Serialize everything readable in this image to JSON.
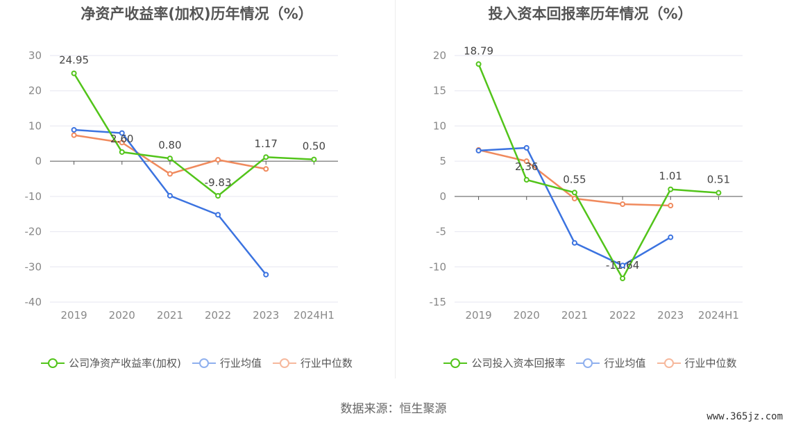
{
  "colors": {
    "company": "#52c41a",
    "industry_avg": "#3b73e0",
    "industry_median": "#f08a5d",
    "grid": "#e6e6f0",
    "axis": "#666666",
    "text": "#666666"
  },
  "chart_data": [
    {
      "type": "line",
      "title": "净资产收益率(加权)历年情况（%）",
      "categories": [
        "2019",
        "2020",
        "2021",
        "2022",
        "2023",
        "2024H1"
      ],
      "ylim": [
        -40,
        30
      ],
      "yticks": [
        30,
        20,
        10,
        0,
        -10,
        -20,
        -30,
        -40
      ],
      "series": [
        {
          "name": "公司净资产收益率(加权)",
          "color_key": "company",
          "values": [
            24.95,
            2.6,
            0.8,
            -9.83,
            1.17,
            0.5
          ],
          "labels": [
            "24.95",
            "2.60",
            "0.80",
            "-9.83",
            "1.17",
            "0.50"
          ]
        },
        {
          "name": "行业均值",
          "color_key": "industry_avg",
          "values": [
            8.9,
            8.0,
            -9.8,
            -15.2,
            -32.2,
            null
          ]
        },
        {
          "name": "行业中位数",
          "color_key": "industry_median",
          "values": [
            7.4,
            5.3,
            -3.6,
            0.4,
            -2.2,
            null
          ]
        }
      ]
    },
    {
      "type": "line",
      "title": "投入资本回报率历年情况（%）",
      "categories": [
        "2019",
        "2020",
        "2021",
        "2022",
        "2023",
        "2024H1"
      ],
      "ylim": [
        -15,
        20
      ],
      "yticks": [
        20,
        15,
        10,
        5,
        0,
        -5,
        -10,
        -15
      ],
      "series": [
        {
          "name": "公司投入资本回报率",
          "color_key": "company",
          "values": [
            18.79,
            2.36,
            0.55,
            -11.64,
            1.01,
            0.51
          ],
          "labels": [
            "18.79",
            "2.36",
            "0.55",
            "-11.64",
            "1.01",
            "0.51"
          ]
        },
        {
          "name": "行业均值",
          "color_key": "industry_avg",
          "values": [
            6.5,
            6.9,
            -6.6,
            -9.8,
            -5.8,
            null
          ]
        },
        {
          "name": "行业中位数",
          "color_key": "industry_median",
          "values": [
            6.6,
            5.0,
            -0.3,
            -1.1,
            -1.3,
            null
          ]
        }
      ]
    }
  ],
  "source_text": "数据来源：恒生聚源",
  "watermark": "www.365jz.com"
}
